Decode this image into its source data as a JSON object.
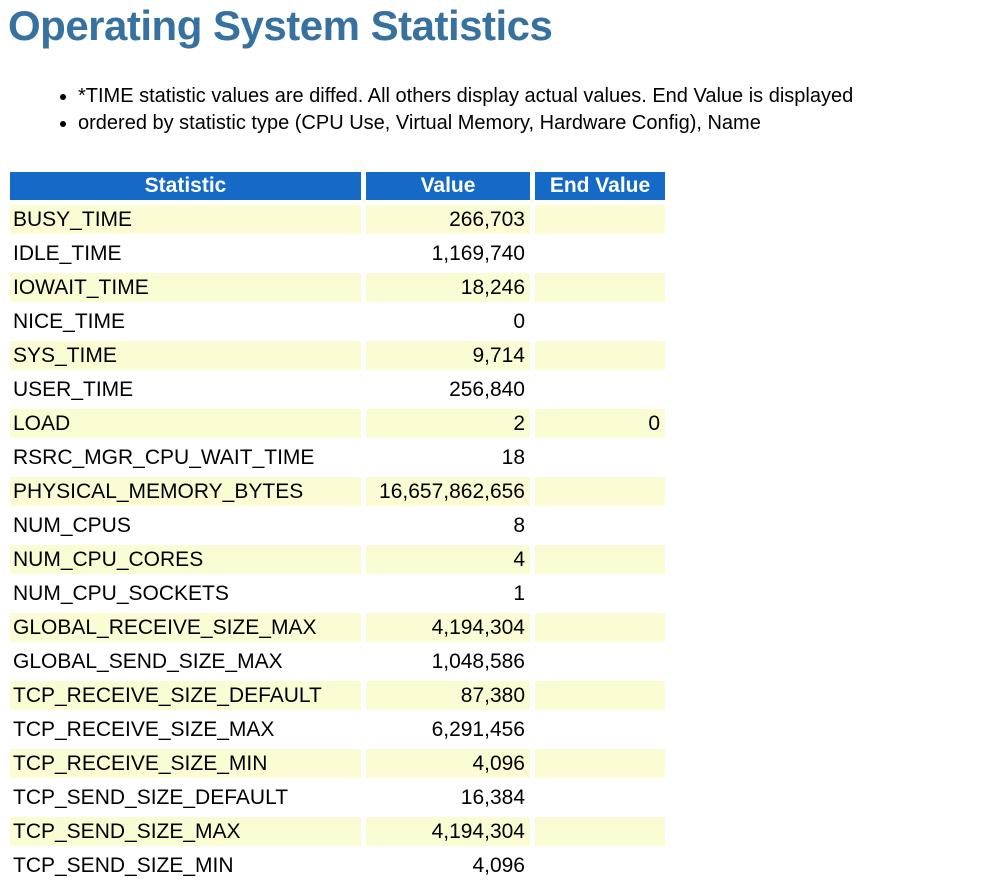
{
  "page": {
    "title": "Operating System Statistics"
  },
  "notes": [
    "*TIME statistic values are diffed. All others display actual values. End Value is displayed",
    "ordered by statistic type (CPU Use, Virtual Memory, Hardware Config), Name"
  ],
  "colors": {
    "title": "#36719F",
    "header_bg": "#1569C7",
    "row_alt_bg": "#FCFCD4",
    "header_text": "#FFFFFF"
  },
  "table": {
    "columns": [
      "Statistic",
      "Value",
      "End Value"
    ],
    "rows": [
      {
        "statistic": "BUSY_TIME",
        "value": "266,703",
        "end_value": ""
      },
      {
        "statistic": "IDLE_TIME",
        "value": "1,169,740",
        "end_value": ""
      },
      {
        "statistic": "IOWAIT_TIME",
        "value": "18,246",
        "end_value": ""
      },
      {
        "statistic": "NICE_TIME",
        "value": "0",
        "end_value": ""
      },
      {
        "statistic": "SYS_TIME",
        "value": "9,714",
        "end_value": ""
      },
      {
        "statistic": "USER_TIME",
        "value": "256,840",
        "end_value": ""
      },
      {
        "statistic": "LOAD",
        "value": "2",
        "end_value": "0"
      },
      {
        "statistic": "RSRC_MGR_CPU_WAIT_TIME",
        "value": "18",
        "end_value": ""
      },
      {
        "statistic": "PHYSICAL_MEMORY_BYTES",
        "value": "16,657,862,656",
        "end_value": ""
      },
      {
        "statistic": "NUM_CPUS",
        "value": "8",
        "end_value": ""
      },
      {
        "statistic": "NUM_CPU_CORES",
        "value": "4",
        "end_value": ""
      },
      {
        "statistic": "NUM_CPU_SOCKETS",
        "value": "1",
        "end_value": ""
      },
      {
        "statistic": "GLOBAL_RECEIVE_SIZE_MAX",
        "value": "4,194,304",
        "end_value": ""
      },
      {
        "statistic": "GLOBAL_SEND_SIZE_MAX",
        "value": "1,048,586",
        "end_value": ""
      },
      {
        "statistic": "TCP_RECEIVE_SIZE_DEFAULT",
        "value": "87,380",
        "end_value": ""
      },
      {
        "statistic": "TCP_RECEIVE_SIZE_MAX",
        "value": "6,291,456",
        "end_value": ""
      },
      {
        "statistic": "TCP_RECEIVE_SIZE_MIN",
        "value": "4,096",
        "end_value": ""
      },
      {
        "statistic": "TCP_SEND_SIZE_DEFAULT",
        "value": "16,384",
        "end_value": ""
      },
      {
        "statistic": "TCP_SEND_SIZE_MAX",
        "value": "4,194,304",
        "end_value": ""
      },
      {
        "statistic": "TCP_SEND_SIZE_MIN",
        "value": "4,096",
        "end_value": ""
      }
    ]
  }
}
